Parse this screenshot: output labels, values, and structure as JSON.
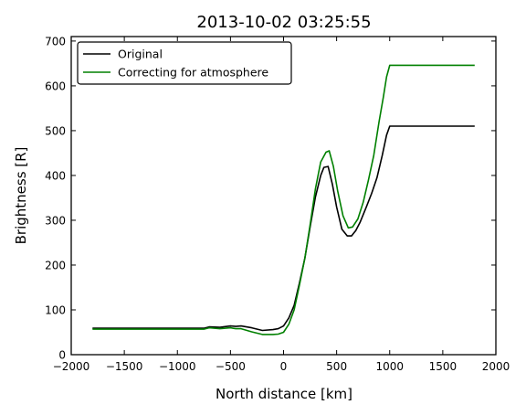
{
  "chart_data": {
    "type": "line",
    "title": "2013-10-02 03:25:55",
    "xlabel": "North distance [km]",
    "ylabel": "Brightness [R]",
    "xlim": [
      -2000,
      2000
    ],
    "ylim": [
      0,
      710
    ],
    "xticks": [
      -2000,
      -1500,
      -1000,
      -500,
      0,
      500,
      1000,
      1500,
      2000
    ],
    "xtick_labels": [
      "−2000",
      "−1500",
      "−1000",
      "−500",
      "0",
      "500",
      "1000",
      "1500",
      "2000"
    ],
    "yticks": [
      0,
      100,
      200,
      300,
      400,
      500,
      600,
      700
    ],
    "yticks_labels": [
      "0",
      "100",
      "200",
      "300",
      "400",
      "500",
      "600",
      "700"
    ],
    "grid": false,
    "legend_placement": "top-left",
    "series": [
      {
        "name": "Original",
        "color": "#000000",
        "points": [
          [
            -1800,
            59
          ],
          [
            -750,
            59
          ],
          [
            -700,
            62
          ],
          [
            -600,
            61
          ],
          [
            -500,
            64
          ],
          [
            -450,
            63
          ],
          [
            -400,
            64
          ],
          [
            -300,
            60
          ],
          [
            -200,
            54
          ],
          [
            -100,
            56
          ],
          [
            -50,
            58
          ],
          [
            0,
            64
          ],
          [
            50,
            82
          ],
          [
            100,
            110
          ],
          [
            150,
            160
          ],
          [
            200,
            215
          ],
          [
            250,
            285
          ],
          [
            300,
            352
          ],
          [
            350,
            400
          ],
          [
            380,
            418
          ],
          [
            420,
            420
          ],
          [
            460,
            380
          ],
          [
            500,
            330
          ],
          [
            550,
            280
          ],
          [
            600,
            265
          ],
          [
            640,
            265
          ],
          [
            680,
            277
          ],
          [
            720,
            295
          ],
          [
            780,
            330
          ],
          [
            830,
            360
          ],
          [
            880,
            395
          ],
          [
            930,
            445
          ],
          [
            970,
            490
          ],
          [
            1000,
            510
          ],
          [
            1800,
            510
          ]
        ]
      },
      {
        "name": "Correcting for atmosphere",
        "color": "#008000",
        "points": [
          [
            -1800,
            57
          ],
          [
            -750,
            57
          ],
          [
            -700,
            60
          ],
          [
            -600,
            58
          ],
          [
            -500,
            60
          ],
          [
            -450,
            58
          ],
          [
            -400,
            58
          ],
          [
            -300,
            51
          ],
          [
            -200,
            45
          ],
          [
            -100,
            45
          ],
          [
            -50,
            46
          ],
          [
            0,
            50
          ],
          [
            50,
            68
          ],
          [
            100,
            100
          ],
          [
            150,
            155
          ],
          [
            200,
            215
          ],
          [
            250,
            290
          ],
          [
            300,
            370
          ],
          [
            350,
            430
          ],
          [
            400,
            452
          ],
          [
            430,
            455
          ],
          [
            470,
            420
          ],
          [
            510,
            365
          ],
          [
            560,
            310
          ],
          [
            610,
            283
          ],
          [
            650,
            285
          ],
          [
            700,
            303
          ],
          [
            750,
            340
          ],
          [
            800,
            390
          ],
          [
            850,
            445
          ],
          [
            900,
            520
          ],
          [
            940,
            575
          ],
          [
            970,
            620
          ],
          [
            1000,
            646
          ],
          [
            1800,
            646
          ]
        ]
      }
    ]
  }
}
